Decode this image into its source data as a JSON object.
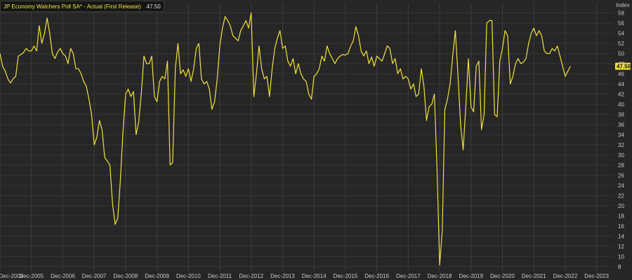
{
  "legend": {
    "series_name": "JP Economy Watchers Poll SA* - Actual (First Release)",
    "last_value": "47.50"
  },
  "chart_data": {
    "type": "line",
    "title": "",
    "xlabel": "",
    "ylabel": "Index",
    "ylim": [
      7,
      60
    ],
    "x_range": [
      "2004-12",
      "2024-06"
    ],
    "y_ticks": [
      8,
      10,
      12,
      14,
      16,
      18,
      20,
      22,
      24,
      26,
      28,
      30,
      32,
      34,
      36,
      38,
      40,
      42,
      44,
      46,
      48,
      50,
      52,
      54,
      56,
      58
    ],
    "x_ticks": [
      "Dec-2004",
      "Dec-2005",
      "Dec-2006",
      "Dec-2007",
      "Dec-2008",
      "Dec-2009",
      "Dec-2010",
      "Dec-2011",
      "Dec-2012",
      "Dec-2013",
      "Dec-2014",
      "Dec-2015",
      "Dec-2016",
      "Dec-2017",
      "Dec-2018",
      "Dec-2019",
      "Dec-2020",
      "Dec-2021",
      "Dec-2022",
      "Dec-2023"
    ],
    "grid": true,
    "series_color": "#f2e23a",
    "last_label": "47.50",
    "series": [
      {
        "name": "JP Economy Watchers Poll SA* - Actual (First Release)",
        "points": [
          [
            "2004-12",
            50.0
          ],
          [
            "2005-01",
            47.5
          ],
          [
            "2005-02",
            46.5
          ],
          [
            "2005-03",
            45.0
          ],
          [
            "2005-04",
            44.2
          ],
          [
            "2005-05",
            45.0
          ],
          [
            "2005-06",
            45.5
          ],
          [
            "2005-07",
            49.5
          ],
          [
            "2005-08",
            49.8
          ],
          [
            "2005-09",
            50.2
          ],
          [
            "2005-10",
            51.0
          ],
          [
            "2005-11",
            50.5
          ],
          [
            "2005-12",
            50.5
          ],
          [
            "2006-01",
            51.5
          ],
          [
            "2006-02",
            50.5
          ],
          [
            "2006-03",
            55.5
          ],
          [
            "2006-04",
            52.0
          ],
          [
            "2006-05",
            54.0
          ],
          [
            "2006-06",
            57.0
          ],
          [
            "2006-07",
            54.0
          ],
          [
            "2006-08",
            50.0
          ],
          [
            "2006-09",
            49.0
          ],
          [
            "2006-10",
            50.3
          ],
          [
            "2006-11",
            51.0
          ],
          [
            "2006-12",
            50.0
          ],
          [
            "2007-01",
            49.5
          ],
          [
            "2007-02",
            48.0
          ],
          [
            "2007-03",
            51.0
          ],
          [
            "2007-04",
            50.0
          ],
          [
            "2007-05",
            47.0
          ],
          [
            "2007-06",
            47.0
          ],
          [
            "2007-07",
            46.0
          ],
          [
            "2007-08",
            44.5
          ],
          [
            "2007-09",
            43.5
          ],
          [
            "2007-10",
            41.0
          ],
          [
            "2007-11",
            38.0
          ],
          [
            "2007-12",
            32.0
          ],
          [
            "2008-01",
            33.5
          ],
          [
            "2008-02",
            36.8
          ],
          [
            "2008-03",
            35.0
          ],
          [
            "2008-04",
            29.5
          ],
          [
            "2008-05",
            28.8
          ],
          [
            "2008-06",
            28.0
          ],
          [
            "2008-07",
            20.5
          ],
          [
            "2008-08",
            16.3
          ],
          [
            "2008-09",
            17.5
          ],
          [
            "2008-10",
            25.0
          ],
          [
            "2008-11",
            34.5
          ],
          [
            "2008-12",
            42.0
          ],
          [
            "2009-01",
            43.0
          ],
          [
            "2009-02",
            41.5
          ],
          [
            "2009-03",
            42.5
          ],
          [
            "2009-04",
            34.0
          ],
          [
            "2009-05",
            36.5
          ],
          [
            "2009-06",
            42.0
          ],
          [
            "2009-07",
            49.5
          ],
          [
            "2009-08",
            48.0
          ],
          [
            "2009-09",
            48.0
          ],
          [
            "2009-10",
            49.5
          ],
          [
            "2009-11",
            41.5
          ],
          [
            "2009-12",
            40.5
          ],
          [
            "2010-01",
            44.5
          ],
          [
            "2010-02",
            45.5
          ],
          [
            "2010-03",
            45.0
          ],
          [
            "2010-04",
            48.5
          ],
          [
            "2010-05",
            28.0
          ],
          [
            "2010-06",
            28.5
          ],
          [
            "2010-07",
            47.0
          ],
          [
            "2010-08",
            52.0
          ],
          [
            "2010-09",
            46.0
          ],
          [
            "2010-10",
            46.8
          ],
          [
            "2010-11",
            45.5
          ],
          [
            "2010-12",
            47.0
          ],
          [
            "2011-01",
            44.5
          ],
          [
            "2011-02",
            47.0
          ],
          [
            "2011-03",
            51.0
          ],
          [
            "2011-04",
            52.0
          ],
          [
            "2011-05",
            45.0
          ],
          [
            "2011-06",
            44.0
          ],
          [
            "2011-07",
            44.5
          ],
          [
            "2011-08",
            43.0
          ],
          [
            "2011-09",
            39.0
          ],
          [
            "2011-10",
            40.5
          ],
          [
            "2011-11",
            45.0
          ],
          [
            "2011-12",
            51.5
          ],
          [
            "2012-01",
            55.0
          ],
          [
            "2012-02",
            57.3
          ],
          [
            "2012-03",
            56.5
          ],
          [
            "2012-04",
            55.5
          ],
          [
            "2012-05",
            53.5
          ],
          [
            "2012-06",
            53.0
          ],
          [
            "2012-07",
            52.5
          ],
          [
            "2012-08",
            54.5
          ],
          [
            "2012-09",
            55.5
          ],
          [
            "2012-10",
            56.5
          ],
          [
            "2012-11",
            55.0
          ],
          [
            "2012-12",
            58.0
          ],
          [
            "2013-01",
            41.5
          ],
          [
            "2013-02",
            46.0
          ],
          [
            "2013-03",
            51.5
          ],
          [
            "2013-04",
            47.0
          ],
          [
            "2013-05",
            45.0
          ],
          [
            "2013-06",
            45.5
          ],
          [
            "2013-07",
            41.5
          ],
          [
            "2013-08",
            47.0
          ],
          [
            "2013-09",
            51.0
          ],
          [
            "2013-10",
            53.0
          ],
          [
            "2013-11",
            54.5
          ],
          [
            "2013-12",
            51.0
          ],
          [
            "2014-01",
            51.5
          ],
          [
            "2014-02",
            48.5
          ],
          [
            "2014-03",
            47.5
          ],
          [
            "2014-04",
            49.0
          ],
          [
            "2014-05",
            46.0
          ],
          [
            "2014-06",
            48.0
          ],
          [
            "2014-07",
            46.0
          ],
          [
            "2014-08",
            45.0
          ],
          [
            "2014-09",
            44.5
          ],
          [
            "2014-10",
            42.0
          ],
          [
            "2014-11",
            41.0
          ],
          [
            "2014-12",
            45.5
          ],
          [
            "2015-01",
            46.0
          ],
          [
            "2015-02",
            47.0
          ],
          [
            "2015-03",
            49.5
          ],
          [
            "2015-04",
            48.5
          ],
          [
            "2015-05",
            51.5
          ],
          [
            "2015-06",
            50.0
          ],
          [
            "2015-07",
            49.0
          ],
          [
            "2015-08",
            48.0
          ],
          [
            "2015-09",
            49.0
          ],
          [
            "2015-10",
            49.5
          ],
          [
            "2015-11",
            49.8
          ],
          [
            "2015-12",
            49.7
          ],
          [
            "2016-01",
            50.0
          ],
          [
            "2016-02",
            51.5
          ],
          [
            "2016-03",
            52.5
          ],
          [
            "2016-04",
            55.3
          ],
          [
            "2016-05",
            53.5
          ],
          [
            "2016-06",
            50.5
          ],
          [
            "2016-07",
            49.5
          ],
          [
            "2016-08",
            50.5
          ],
          [
            "2016-09",
            48.0
          ],
          [
            "2016-10",
            49.3
          ],
          [
            "2016-11",
            47.5
          ],
          [
            "2016-12",
            49.5
          ],
          [
            "2017-01",
            49.0
          ],
          [
            "2017-02",
            48.5
          ],
          [
            "2017-03",
            50.0
          ],
          [
            "2017-04",
            51.5
          ],
          [
            "2017-05",
            51.0
          ],
          [
            "2017-06",
            48.0
          ],
          [
            "2017-07",
            49.0
          ],
          [
            "2017-08",
            46.0
          ],
          [
            "2017-09",
            47.0
          ],
          [
            "2017-10",
            45.0
          ],
          [
            "2017-11",
            45.5
          ],
          [
            "2017-12",
            45.0
          ],
          [
            "2018-01",
            43.0
          ],
          [
            "2018-02",
            44.0
          ],
          [
            "2018-03",
            41.5
          ],
          [
            "2018-04",
            42.0
          ],
          [
            "2018-05",
            47.0
          ],
          [
            "2018-06",
            43.5
          ],
          [
            "2018-07",
            36.8
          ],
          [
            "2018-08",
            39.5
          ],
          [
            "2018-09",
            40.0
          ],
          [
            "2018-10",
            42.0
          ],
          [
            "2018-11",
            27.5
          ],
          [
            "2018-12",
            8.3
          ],
          [
            "2019-01",
            15.0
          ],
          [
            "2019-02",
            39.0
          ],
          [
            "2019-03",
            41.0
          ],
          [
            "2019-04",
            44.0
          ],
          [
            "2019-05",
            49.5
          ],
          [
            "2019-06",
            54.5
          ],
          [
            "2019-07",
            46.0
          ],
          [
            "2019-08",
            36.0
          ],
          [
            "2019-09",
            31.0
          ],
          [
            "2019-10",
            39.5
          ],
          [
            "2019-11",
            49.0
          ],
          [
            "2019-12",
            39.5
          ],
          [
            "2020-01",
            38.5
          ],
          [
            "2020-02",
            47.5
          ],
          [
            "2020-03",
            48.5
          ],
          [
            "2020-04",
            35.0
          ],
          [
            "2020-05",
            38.0
          ],
          [
            "2020-06",
            56.0
          ],
          [
            "2020-07",
            56.5
          ],
          [
            "2020-08",
            56.5
          ],
          [
            "2020-09",
            38.0
          ],
          [
            "2020-10",
            37.5
          ],
          [
            "2020-11",
            48.5
          ],
          [
            "2020-12",
            51.0
          ],
          [
            "2021-01",
            54.5
          ],
          [
            "2021-02",
            53.5
          ],
          [
            "2021-03",
            44.0
          ],
          [
            "2021-04",
            45.5
          ],
          [
            "2021-05",
            48.0
          ],
          [
            "2021-06",
            49.0
          ],
          [
            "2021-07",
            48.0
          ],
          [
            "2021-08",
            48.3
          ],
          [
            "2021-09",
            49.0
          ],
          [
            "2021-10",
            52.0
          ],
          [
            "2021-11",
            54.0
          ],
          [
            "2021-12",
            55.0
          ],
          [
            "2022-01",
            53.5
          ],
          [
            "2022-02",
            54.5
          ],
          [
            "2022-03",
            53.5
          ],
          [
            "2022-04",
            50.5
          ],
          [
            "2022-05",
            50.0
          ],
          [
            "2022-06",
            50.0
          ],
          [
            "2022-07",
            51.0
          ],
          [
            "2022-08",
            50.5
          ],
          [
            "2022-09",
            51.5
          ],
          [
            "2022-10",
            49.5
          ],
          [
            "2022-11",
            47.5
          ],
          [
            "2022-12",
            45.5
          ],
          [
            "2023-01",
            46.5
          ],
          [
            "2023-02",
            47.5
          ]
        ]
      }
    ]
  }
}
